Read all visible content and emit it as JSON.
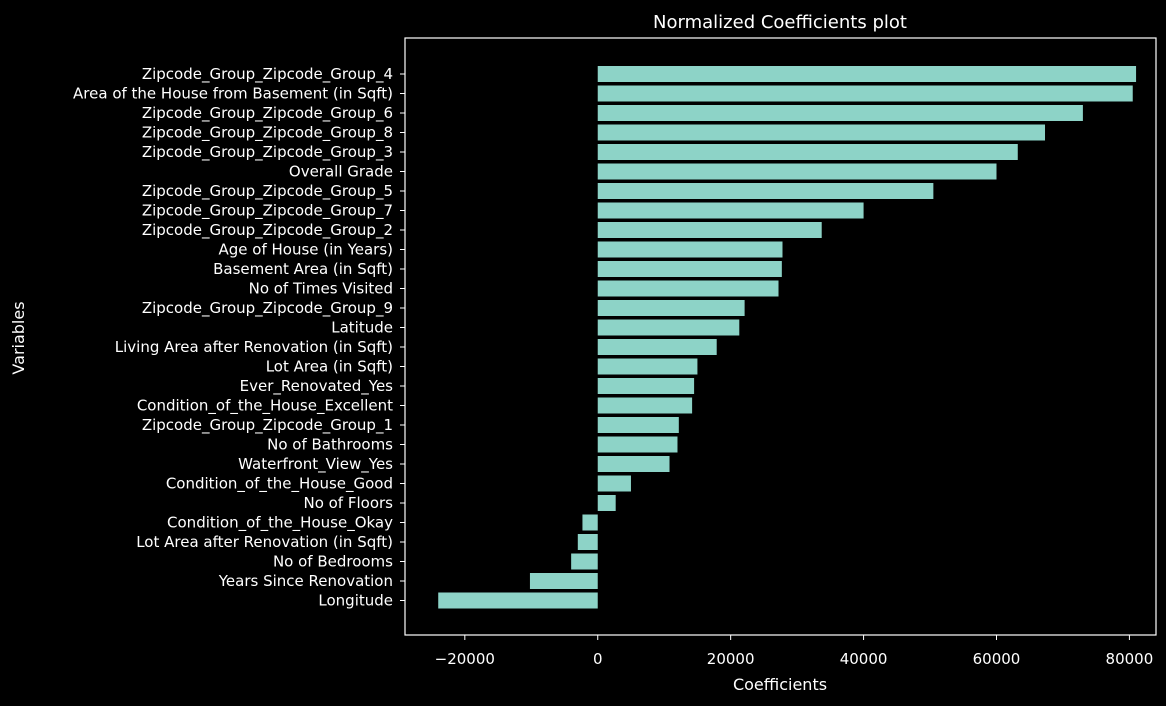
{
  "chart_data": {
    "type": "bar",
    "orientation": "horizontal",
    "title": "Normalized Coefficients plot",
    "xlabel": "Coefficients",
    "ylabel": "Variables",
    "xlim": [
      -29000,
      84000
    ],
    "xticks": [
      -20000,
      0,
      20000,
      40000,
      60000,
      80000
    ],
    "xtick_labels": [
      "−20000",
      "0",
      "20000",
      "40000",
      "60000",
      "80000"
    ],
    "grid": false,
    "bar_color": "#8dd3c7",
    "background_color": "#000000",
    "foreground_color": "#ffffff",
    "categories": [
      "Zipcode_Group_Zipcode_Group_4",
      "Area of the House from Basement (in Sqft)",
      "Zipcode_Group_Zipcode_Group_6",
      "Zipcode_Group_Zipcode_Group_8",
      "Zipcode_Group_Zipcode_Group_3",
      "Overall Grade",
      "Zipcode_Group_Zipcode_Group_5",
      "Zipcode_Group_Zipcode_Group_7",
      "Zipcode_Group_Zipcode_Group_2",
      "Age of House (in Years)",
      "Basement Area (in Sqft)",
      "No of Times Visited",
      "Zipcode_Group_Zipcode_Group_9",
      "Latitude",
      "Living Area after Renovation (in Sqft)",
      "Lot Area (in Sqft)",
      "Ever_Renovated_Yes",
      "Condition_of_the_House_Excellent",
      "Zipcode_Group_Zipcode_Group_1",
      "No of Bathrooms",
      "Waterfront_View_Yes",
      "Condition_of_the_House_Good",
      "No of Floors",
      "Condition_of_the_House_Okay",
      "Lot Area after Renovation (in Sqft)",
      "No of Bedrooms",
      "Years Since Renovation",
      "Longitude"
    ],
    "values": [
      81000,
      80500,
      73000,
      67300,
      63200,
      60000,
      50500,
      40000,
      33700,
      27800,
      27700,
      27200,
      22100,
      21300,
      17900,
      15000,
      14500,
      14200,
      12200,
      12000,
      10800,
      5000,
      2700,
      -2300,
      -3000,
      -4000,
      -10200,
      -24000
    ]
  }
}
